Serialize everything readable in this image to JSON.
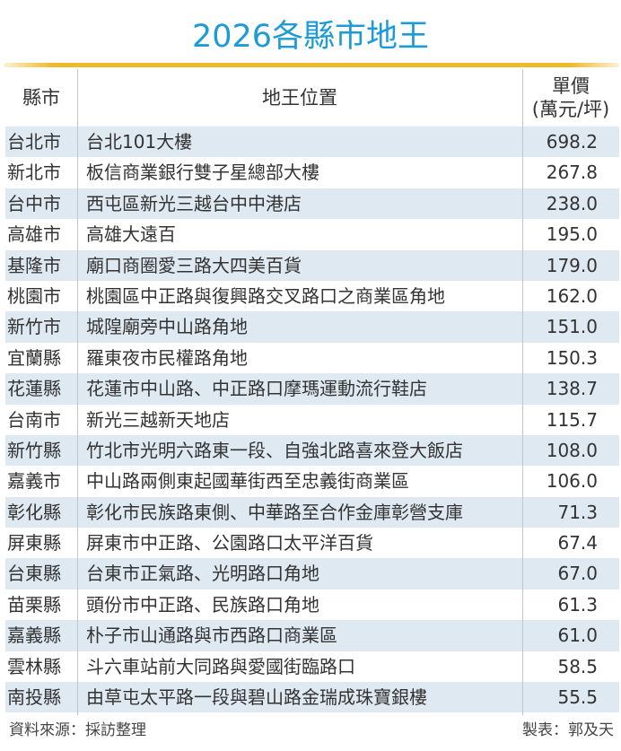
{
  "title": "2026各縣市地王",
  "colors": {
    "title": "#1c9bd7",
    "rule": "#f0b928",
    "row_shade": "#dfe9f1"
  },
  "headers": {
    "county": "縣市",
    "location": "地王位置",
    "price_line1": "單價",
    "price_line2": "(萬元/坪)"
  },
  "footer": {
    "source": "資料來源：採訪整理",
    "author": "製表：郭及天"
  },
  "chart_data": {
    "type": "table",
    "title": "2026各縣市地王",
    "columns": [
      "縣市",
      "地王位置",
      "單價(萬元/坪)"
    ],
    "rows": [
      {
        "county": "台北市",
        "location": "台北101大樓",
        "price": "698.2"
      },
      {
        "county": "新北市",
        "location": "板信商業銀行雙子星總部大樓",
        "price": "267.8"
      },
      {
        "county": "台中市",
        "location": "西屯區新光三越台中中港店",
        "price": "238.0"
      },
      {
        "county": "高雄市",
        "location": "高雄大遠百",
        "price": "195.0"
      },
      {
        "county": "基隆市",
        "location": "廟口商圈愛三路大四美百貨",
        "price": "179.0"
      },
      {
        "county": "桃園市",
        "location": "桃園區中正路與復興路交叉路口之商業區角地",
        "price": "162.0"
      },
      {
        "county": "新竹市",
        "location": "城隍廟旁中山路角地",
        "price": "151.0"
      },
      {
        "county": "宜蘭縣",
        "location": "羅東夜市民權路角地",
        "price": "150.3"
      },
      {
        "county": "花蓮縣",
        "location": "花蓮市中山路、中正路口摩瑪運動流行鞋店",
        "price": "138.7"
      },
      {
        "county": "台南市",
        "location": "新光三越新天地店",
        "price": "115.7"
      },
      {
        "county": "新竹縣",
        "location": "竹北市光明六路東一段、自強北路喜來登大飯店",
        "price": "108.0"
      },
      {
        "county": "嘉義市",
        "location": "中山路兩側東起國華街西至忠義街商業區",
        "price": "106.0"
      },
      {
        "county": "彰化縣",
        "location": "彰化市民族路東側、中華路至合作金庫彰營支庫",
        "price": "71.3"
      },
      {
        "county": "屏東縣",
        "location": "屏東市中正路、公園路口太平洋百貨",
        "price": "67.4"
      },
      {
        "county": "台東縣",
        "location": "台東市正氣路、光明路口角地",
        "price": "67.0"
      },
      {
        "county": "苗栗縣",
        "location": "頭份市中正路、民族路口角地",
        "price": "61.3"
      },
      {
        "county": "嘉義縣",
        "location": "朴子市山通路與市西路口商業區",
        "price": "61.0"
      },
      {
        "county": "雲林縣",
        "location": "斗六車站前大同路與愛國街臨路口",
        "price": "58.5"
      },
      {
        "county": "南投縣",
        "location": "由草屯太平路一段與碧山路金瑞成珠寶銀樓",
        "price": "55.5"
      }
    ]
  }
}
